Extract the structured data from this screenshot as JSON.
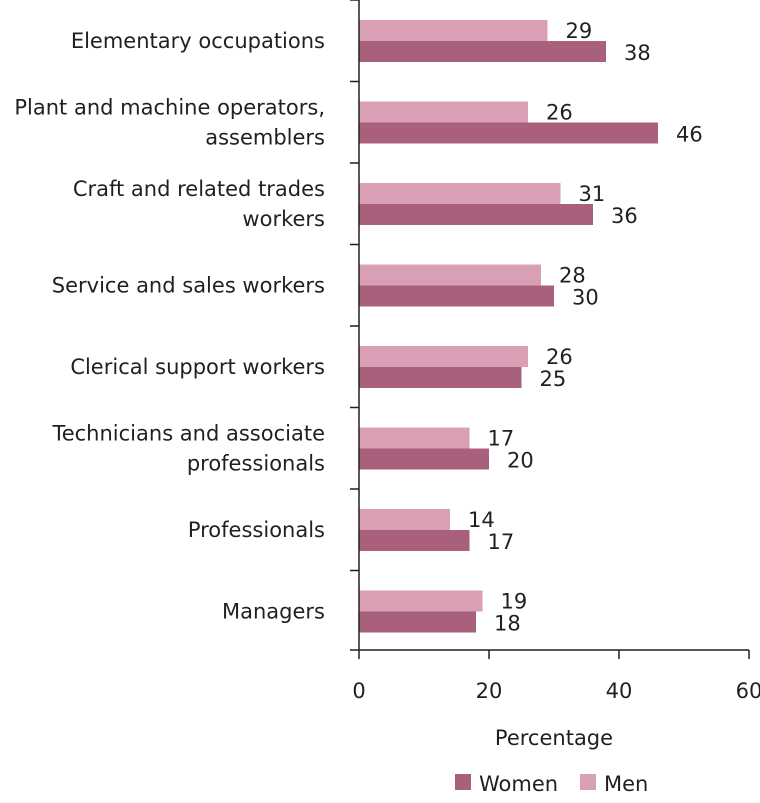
{
  "chart_data": {
    "type": "bar",
    "orientation": "horizontal",
    "categories": [
      [
        "Elementary occupations"
      ],
      [
        "Plant and machine operators,",
        "assemblers"
      ],
      [
        "Craft and related trades",
        "workers"
      ],
      [
        "Service and sales workers"
      ],
      [
        "Clerical support workers"
      ],
      [
        "Technicians and associate",
        "professionals"
      ],
      [
        "Professionals"
      ],
      [
        "Managers"
      ]
    ],
    "series": [
      {
        "name": "Men",
        "color": "#d9a0b5",
        "values": [
          29,
          26,
          31,
          28,
          26,
          17,
          14,
          19
        ]
      },
      {
        "name": "Women",
        "color": "#a9607c",
        "values": [
          38,
          46,
          36,
          30,
          25,
          20,
          17,
          18
        ]
      }
    ],
    "value_labels": {
      "Men": [
        "29",
        "26",
        "31",
        "28",
        "26",
        "17",
        "14",
        "19"
      ],
      "Women": [
        "38",
        "46",
        "36",
        "30",
        "25",
        "20",
        "17",
        "18"
      ]
    },
    "xlabel": "Percentage",
    "xlim": [
      0,
      60
    ],
    "xticks": [
      0,
      20,
      40,
      60
    ],
    "xtick_labels": [
      "0",
      "20",
      "40",
      "60"
    ],
    "grid": false,
    "legend": {
      "position": "bottom-right",
      "entries": [
        {
          "name": "Women",
          "color": "#a9607c"
        },
        {
          "name": "Men",
          "color": "#d9a0b5"
        }
      ]
    }
  }
}
